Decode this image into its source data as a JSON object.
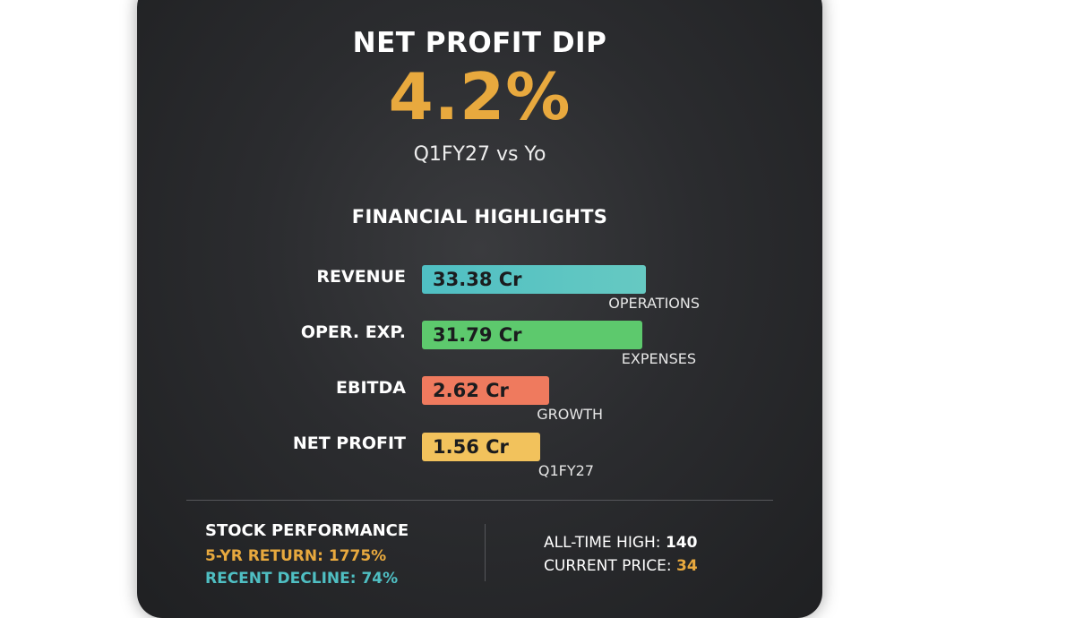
{
  "header": {
    "title": "NET PROFIT DIP",
    "headline_value": "4.2%",
    "subtitle": "Q1FY27 vs Yo"
  },
  "section_title": "FINANCIAL HIGHLIGHTS",
  "chart_data": {
    "type": "bar",
    "orientation": "horizontal",
    "title": "FINANCIAL HIGHLIGHTS",
    "categories": [
      "REVENUE",
      "OPER. EXP.",
      "EBITDA",
      "NET PROFIT"
    ],
    "values": [
      33.38,
      31.79,
      2.62,
      1.56
    ],
    "value_labels": [
      "33.38 Cr",
      "31.79 Cr",
      "2.62 Cr",
      "1.56 Cr"
    ],
    "notes": [
      "OPERATIONS",
      "EXPENSES",
      "GROWTH",
      "Q1FY27"
    ],
    "colors": [
      "#4fbfc3",
      "#5dc96d",
      "#ef7a5e",
      "#f2c25c"
    ],
    "unit": "Cr"
  },
  "stock": {
    "title": "STOCK PERFORMANCE",
    "return_label": "5-YR RETURN:",
    "return_value": "1775%",
    "decline_label": "RECENT DECLINE:",
    "decline_value": "74%",
    "ath_label": "ALL-TIME HIGH:",
    "ath_value": "140",
    "price_label": "CURRENT PRICE:",
    "price_value": "34",
    "colors": {
      "return": "#e8a93e",
      "decline": "#4fbfc3",
      "price": "#e8a93e"
    }
  }
}
